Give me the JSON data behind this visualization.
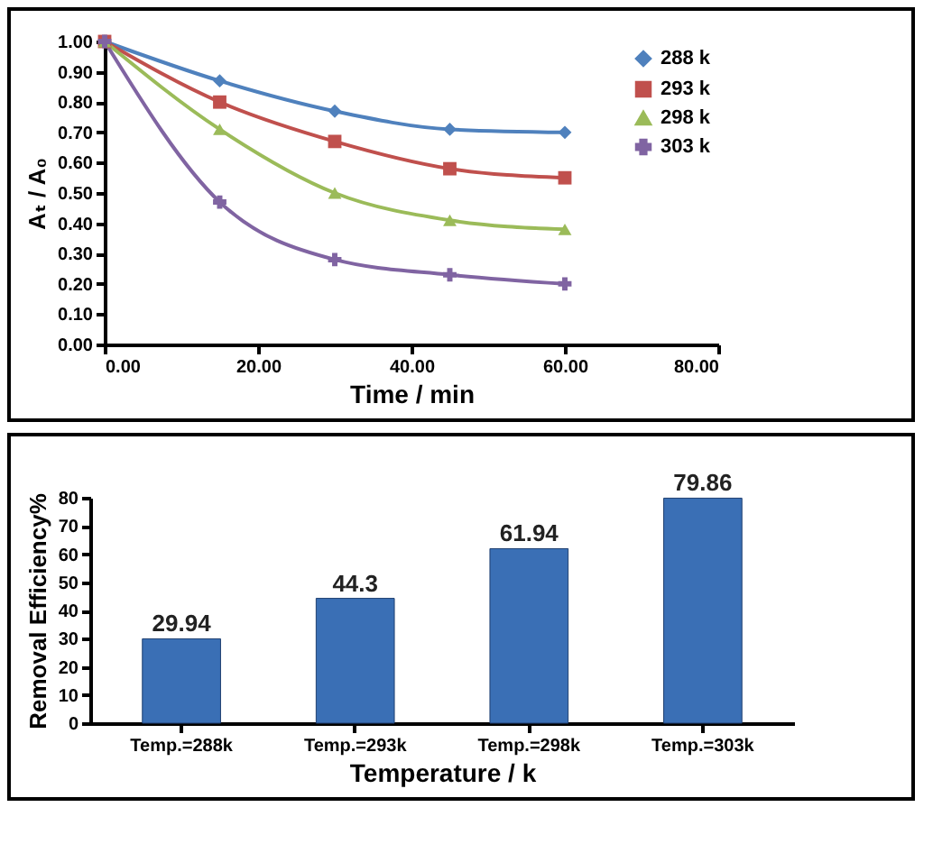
{
  "chart_data": [
    {
      "type": "line",
      "xlabel": "Time / min",
      "ylabel": "Aₜ / A₀",
      "x": [
        0,
        15,
        30,
        45,
        60
      ],
      "series": [
        {
          "name": "288 k",
          "color": "#4f81bd",
          "marker": "diamond",
          "values": [
            1.0,
            0.87,
            0.77,
            0.71,
            0.7
          ]
        },
        {
          "name": "293 k",
          "color": "#c0504d",
          "marker": "square",
          "values": [
            1.0,
            0.8,
            0.67,
            0.58,
            0.55
          ]
        },
        {
          "name": "298 k",
          "color": "#9bbb59",
          "marker": "triangle",
          "values": [
            1.0,
            0.71,
            0.5,
            0.41,
            0.38
          ]
        },
        {
          "name": "303 k",
          "color": "#8064a2",
          "marker": "cross",
          "values": [
            1.0,
            0.47,
            0.28,
            0.23,
            0.2
          ]
        }
      ],
      "xlim": [
        0,
        80
      ],
      "xticks": [
        {
          "value": 0,
          "label": "0.00"
        },
        {
          "value": 20,
          "label": "20.00"
        },
        {
          "value": 40,
          "label": "40.00"
        },
        {
          "value": 60,
          "label": "60.00"
        },
        {
          "value": 80,
          "label": "80.00"
        }
      ],
      "ylim": [
        0,
        1
      ],
      "yticks": [
        {
          "value": 0,
          "label": "0.00"
        },
        {
          "value": 0.1,
          "label": "0.10"
        },
        {
          "value": 0.2,
          "label": "0.20"
        },
        {
          "value": 0.3,
          "label": "0.30"
        },
        {
          "value": 0.4,
          "label": "0.40"
        },
        {
          "value": 0.5,
          "label": "0.50"
        },
        {
          "value": 0.6,
          "label": "0.60"
        },
        {
          "value": 0.7,
          "label": "0.70"
        },
        {
          "value": 0.8,
          "label": "0.80"
        },
        {
          "value": 0.9,
          "label": "0.90"
        },
        {
          "value": 1,
          "label": "1.00"
        }
      ],
      "legend": "top right",
      "grid": false
    },
    {
      "type": "bar",
      "xlabel": "Temperature / k",
      "ylabel": "Removal Efficiency%",
      "categories": [
        "Temp.=288k",
        "Temp.=293k",
        "Temp.=298k",
        "Temp.=303k"
      ],
      "values": [
        29.94,
        44.3,
        61.94,
        79.86
      ],
      "color": "#3a6fb5",
      "data_labels": true,
      "ylim": [
        0,
        80
      ],
      "yticks": [
        0,
        10,
        20,
        30,
        40,
        50,
        60,
        70,
        80
      ],
      "grid": false
    }
  ]
}
